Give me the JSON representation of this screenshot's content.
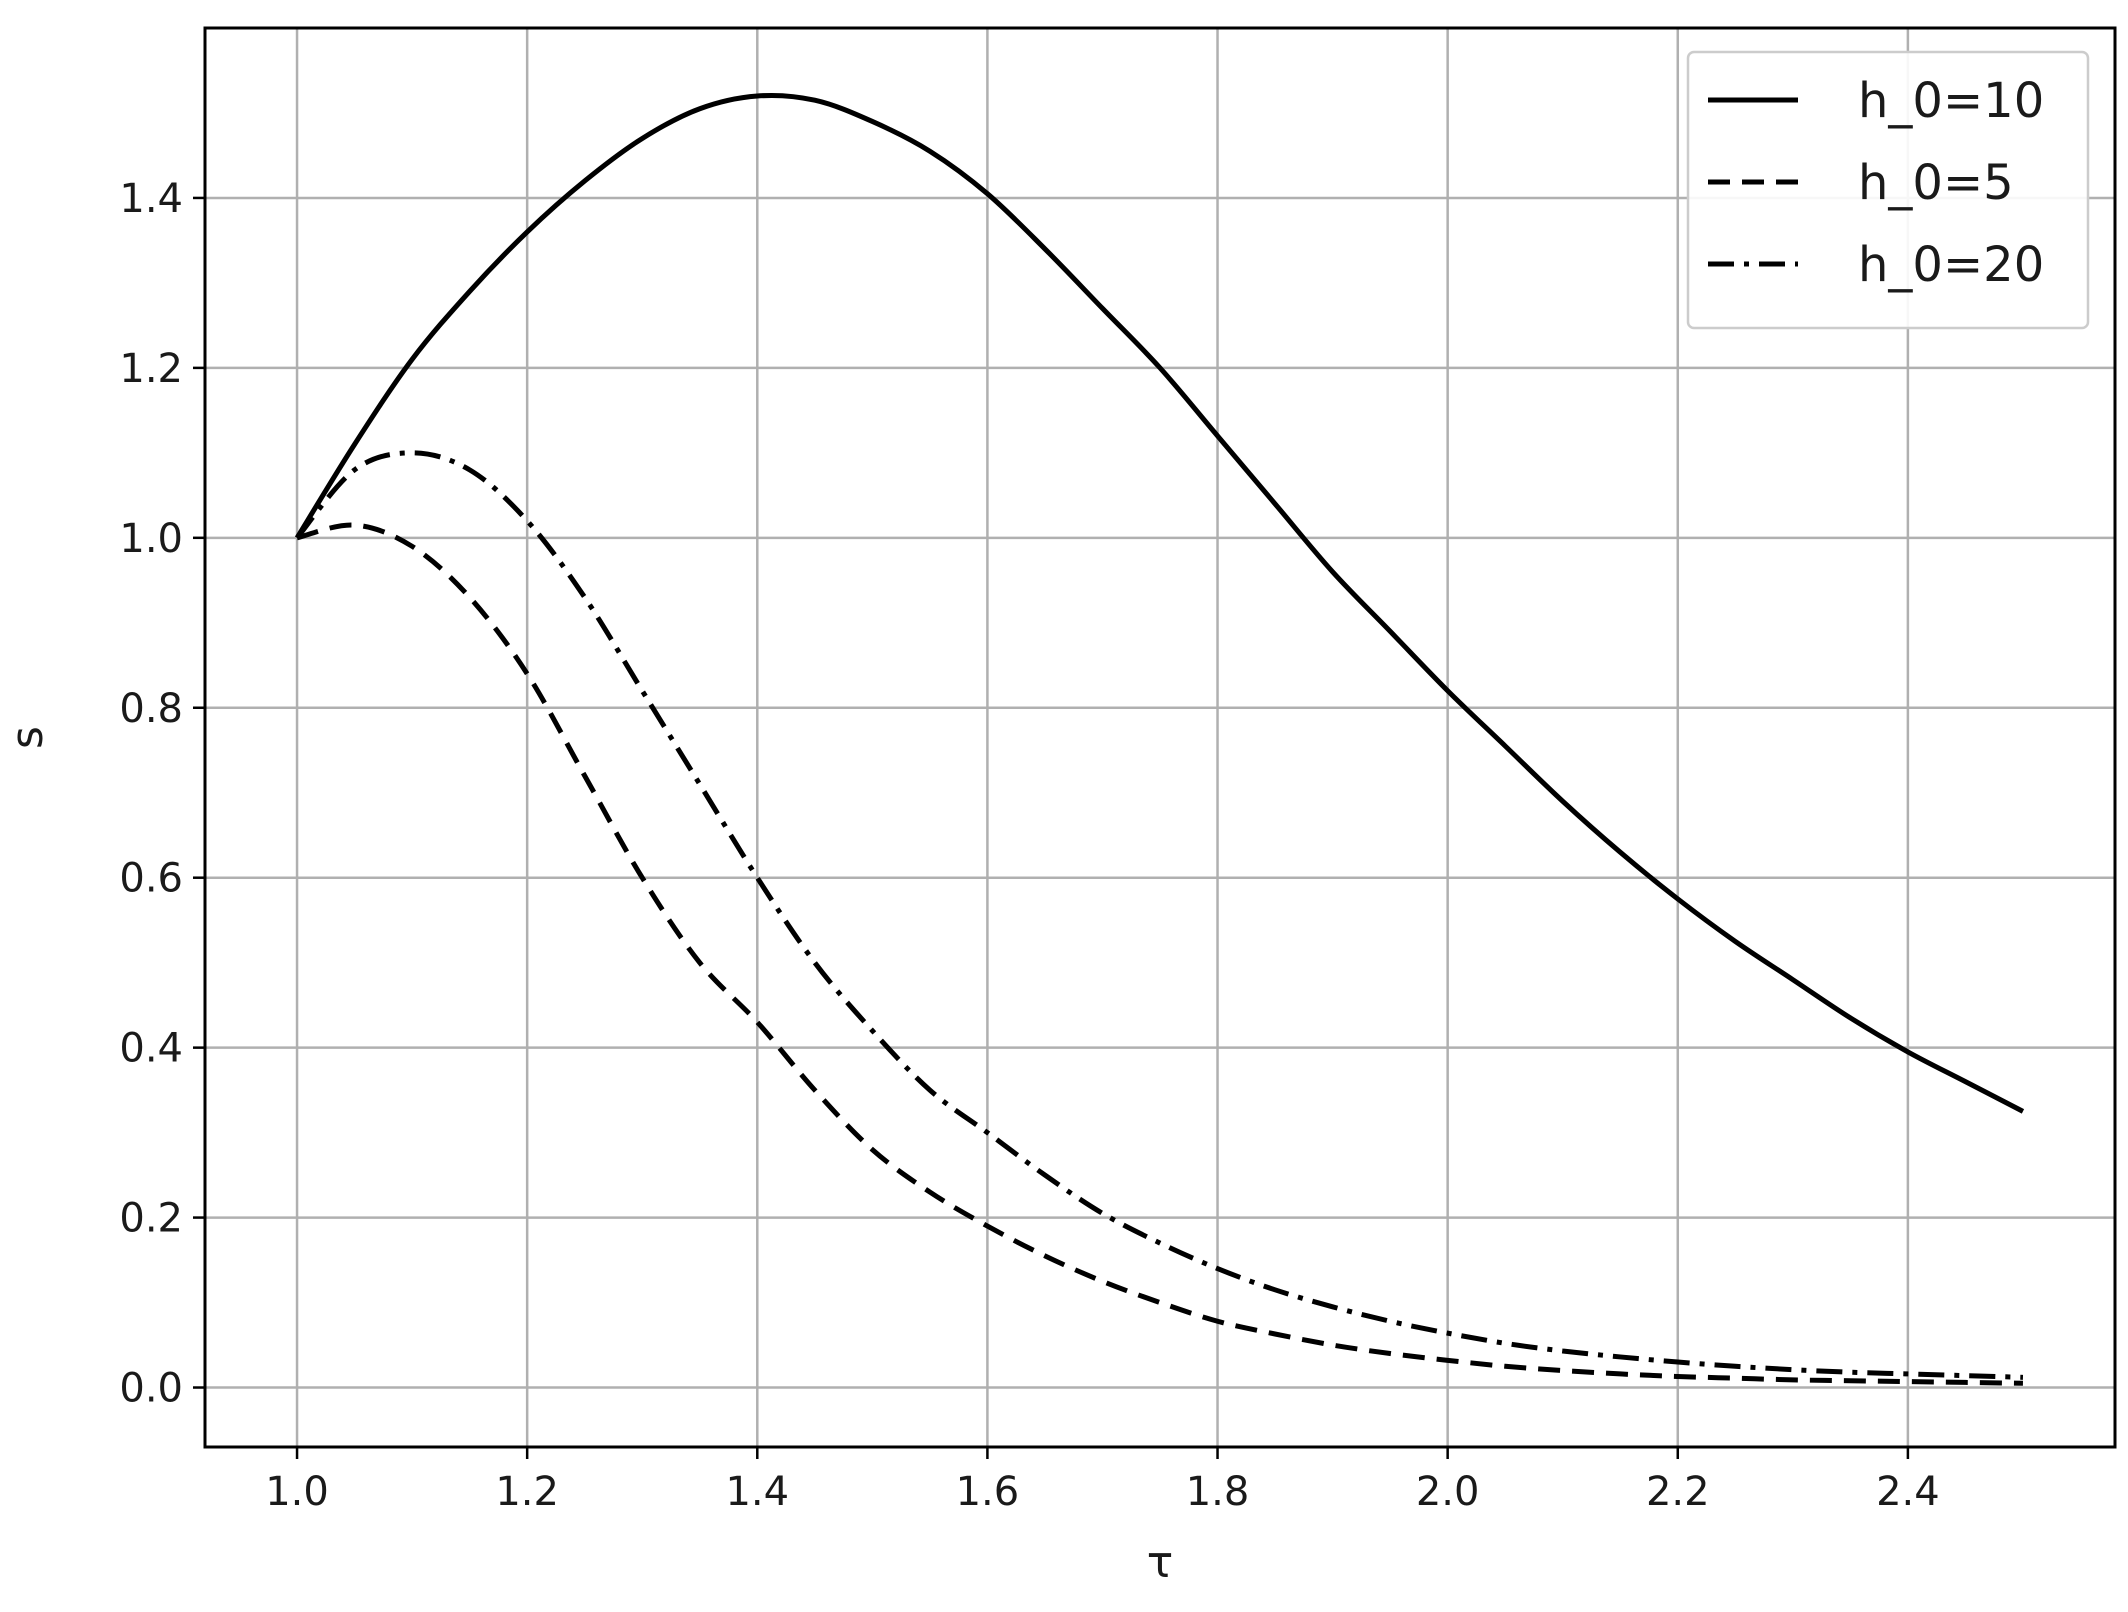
{
  "chart_data": {
    "type": "line",
    "xlabel": "τ",
    "ylabel": "s",
    "xlim": [
      0.92,
      2.58
    ],
    "ylim": [
      -0.07,
      1.6
    ],
    "xticks": [
      1.0,
      1.2,
      1.4,
      1.6,
      1.8,
      2.0,
      2.2,
      2.4
    ],
    "xtick_labels": [
      "1.0",
      "1.2",
      "1.4",
      "1.6",
      "1.8",
      "2.0",
      "2.2",
      "2.4"
    ],
    "yticks": [
      0.0,
      0.2,
      0.4,
      0.6,
      0.8,
      1.0,
      1.2,
      1.4
    ],
    "ytick_labels": [
      "0.0",
      "0.2",
      "0.4",
      "0.6",
      "0.8",
      "1.0",
      "1.2",
      "1.4"
    ],
    "grid": true,
    "legend_position": "top-right",
    "series": [
      {
        "name": "h_0=10",
        "style": "solid",
        "color": "#000000",
        "x": [
          1.0,
          1.05,
          1.1,
          1.15,
          1.2,
          1.25,
          1.3,
          1.35,
          1.4,
          1.45,
          1.5,
          1.55,
          1.6,
          1.65,
          1.7,
          1.75,
          1.8,
          1.85,
          1.9,
          1.95,
          2.0,
          2.05,
          2.1,
          2.15,
          2.2,
          2.25,
          2.3,
          2.35,
          2.4,
          2.45,
          2.5
        ],
        "y": [
          1.0,
          1.11,
          1.21,
          1.29,
          1.36,
          1.42,
          1.47,
          1.505,
          1.52,
          1.515,
          1.49,
          1.455,
          1.405,
          1.34,
          1.27,
          1.2,
          1.12,
          1.04,
          0.96,
          0.89,
          0.82,
          0.755,
          0.69,
          0.63,
          0.575,
          0.525,
          0.48,
          0.435,
          0.395,
          0.36,
          0.325
        ]
      },
      {
        "name": "h_0=5",
        "style": "dashed",
        "color": "#000000",
        "x": [
          1.0,
          1.05,
          1.1,
          1.15,
          1.2,
          1.25,
          1.3,
          1.35,
          1.4,
          1.45,
          1.5,
          1.55,
          1.6,
          1.65,
          1.7,
          1.75,
          1.8,
          1.85,
          1.9,
          1.95,
          2.0,
          2.05,
          2.1,
          2.15,
          2.2,
          2.25,
          2.3,
          2.35,
          2.4,
          2.45,
          2.5
        ],
        "y": [
          1.0,
          1.015,
          0.99,
          0.93,
          0.84,
          0.72,
          0.6,
          0.5,
          0.43,
          0.35,
          0.28,
          0.23,
          0.19,
          0.155,
          0.125,
          0.1,
          0.078,
          0.063,
          0.05,
          0.04,
          0.032,
          0.025,
          0.02,
          0.016,
          0.013,
          0.011,
          0.009,
          0.008,
          0.007,
          0.006,
          0.005
        ]
      },
      {
        "name": "h_0=20",
        "style": "dashdot",
        "color": "#000000",
        "x": [
          1.0,
          1.05,
          1.1,
          1.15,
          1.2,
          1.25,
          1.3,
          1.35,
          1.4,
          1.45,
          1.5,
          1.55,
          1.6,
          1.65,
          1.7,
          1.75,
          1.8,
          1.85,
          1.9,
          1.95,
          2.0,
          2.05,
          2.1,
          2.15,
          2.2,
          2.25,
          2.3,
          2.35,
          2.4,
          2.45,
          2.5
        ],
        "y": [
          1.0,
          1.08,
          1.1,
          1.08,
          1.02,
          0.93,
          0.82,
          0.71,
          0.6,
          0.5,
          0.42,
          0.35,
          0.3,
          0.25,
          0.205,
          0.17,
          0.14,
          0.115,
          0.095,
          0.078,
          0.064,
          0.052,
          0.043,
          0.036,
          0.03,
          0.025,
          0.021,
          0.018,
          0.016,
          0.014,
          0.012
        ]
      }
    ]
  }
}
